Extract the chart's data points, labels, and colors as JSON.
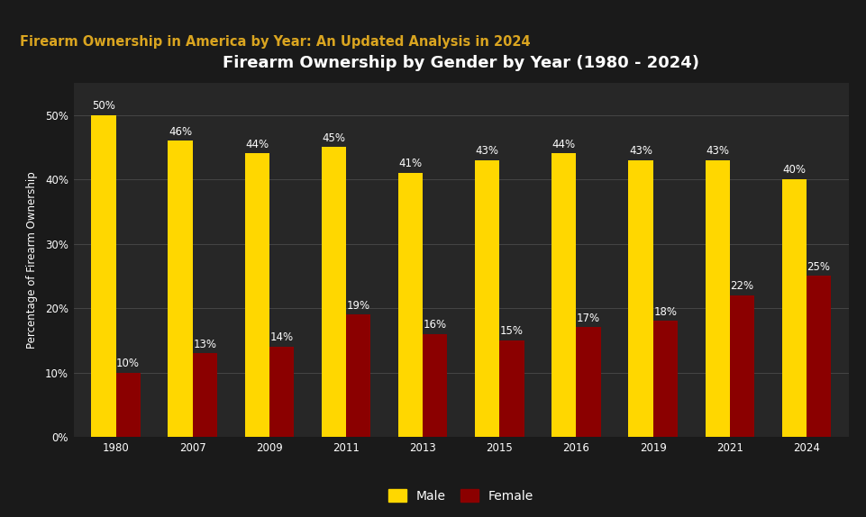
{
  "title": "Firearm Ownership by Gender by Year (1980 - 2024)",
  "header": "Firearm Ownership in America by Year: An Updated Analysis in 2024",
  "ylabel": "Percentage of Firearm Ownership",
  "years": [
    "1980",
    "2007",
    "2009",
    "2011",
    "2013",
    "2015",
    "2016",
    "2019",
    "2021",
    "2024"
  ],
  "male_values": [
    50,
    46,
    44,
    45,
    41,
    43,
    44,
    43,
    43,
    40
  ],
  "female_values": [
    10,
    13,
    14,
    19,
    16,
    15,
    17,
    18,
    22,
    25
  ],
  "male_color": "#FFD700",
  "female_color": "#8B0000",
  "bg_color": "#1a1a1a",
  "plot_bg_color": "#272727",
  "text_color": "#FFFFFF",
  "header_color": "#DAA520",
  "grid_color": "#4a4a4a",
  "bar_width": 0.32,
  "ylim": [
    0,
    55
  ],
  "yticks": [
    0,
    10,
    20,
    30,
    40,
    50
  ],
  "ytick_labels": [
    "0%",
    "10%",
    "20%",
    "30%",
    "40%",
    "50%"
  ],
  "title_fontsize": 13,
  "header_fontsize": 10.5,
  "label_fontsize": 8.5,
  "tick_fontsize": 8.5,
  "legend_fontsize": 10,
  "separator_color": "#666633"
}
